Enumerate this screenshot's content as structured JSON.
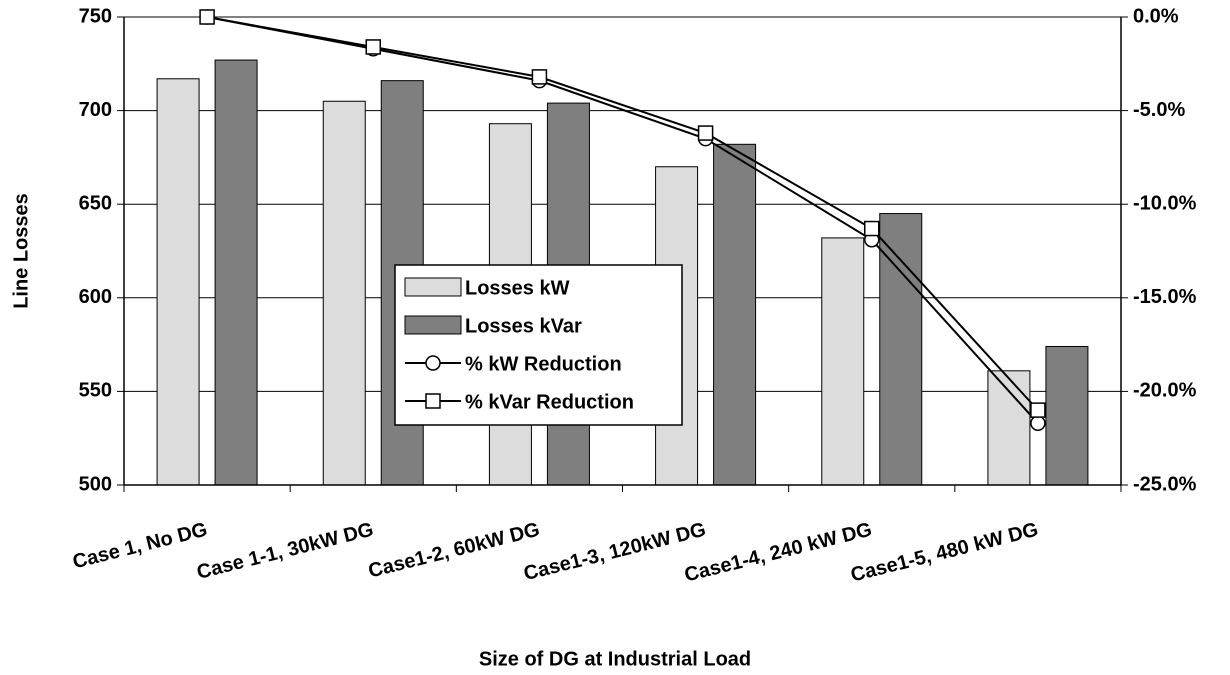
{
  "chart_data": {
    "type": "bar",
    "x_label": "Size of DG at Industrial Load",
    "y_label": "Line Losses",
    "categories": [
      "Case 1, No DG",
      "Case 1-1, 30kW DG",
      "Case1-2, 60kW DG",
      "Case1-3, 120kW DG",
      "Case1-4, 240 kW DG",
      "Case1-5, 480 kW DG"
    ],
    "series": [
      {
        "name": "Losses kW",
        "type": "bar",
        "color": "#dcdcdc",
        "values": [
          717,
          705,
          693,
          670,
          632,
          561
        ]
      },
      {
        "name": "Losses kVar",
        "type": "bar",
        "color": "#7f7f7f",
        "values": [
          727,
          716,
          704,
          682,
          645,
          574
        ]
      },
      {
        "name": "% kW Reduction",
        "type": "line",
        "marker": "circle",
        "axis": "y2",
        "color": "#000000",
        "values": [
          0,
          -1.7,
          -3.4,
          -6.5,
          -11.9,
          -21.7
        ]
      },
      {
        "name": "% kVar Reduction",
        "type": "line",
        "marker": "square",
        "axis": "y2",
        "color": "#000000",
        "values": [
          0,
          -1.6,
          -3.2,
          -6.2,
          -11.3,
          -21.0
        ]
      }
    ],
    "ylim": [
      500,
      750
    ],
    "yticks": [
      500,
      550,
      600,
      650,
      700,
      750
    ],
    "y2lim": [
      -25,
      0
    ],
    "y2ticks": [
      {
        "value": -25,
        "label": "-25.0%"
      },
      {
        "value": -20,
        "label": "-20.0%"
      },
      {
        "value": -15,
        "label": "-15.0%"
      },
      {
        "value": -10,
        "label": "-10.0%"
      },
      {
        "value": -5,
        "label": "-5.0%"
      },
      {
        "value": 0,
        "label": "0.0%"
      }
    ],
    "grid": true,
    "legend": "center"
  }
}
